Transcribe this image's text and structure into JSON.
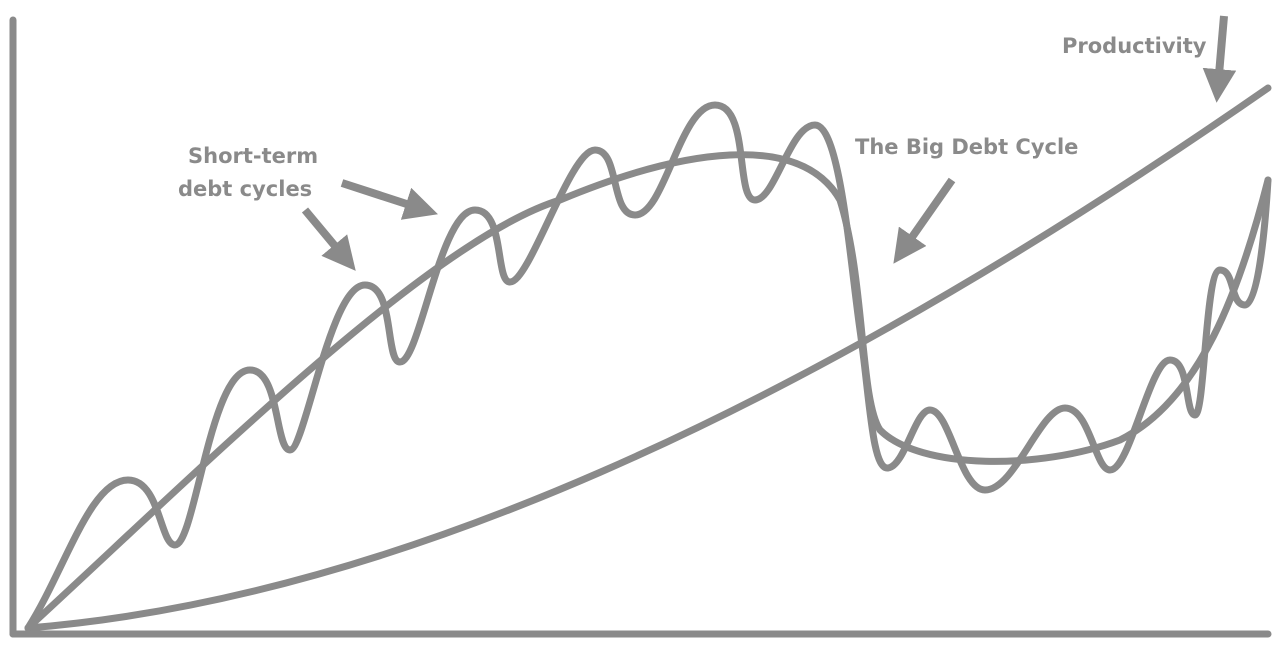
{
  "colors": {
    "stroke": "#8a8a8a",
    "text": "#8a8a8a",
    "background": "#ffffff"
  },
  "labels": {
    "productivity": "Productivity",
    "big_debt_cycle": "The Big Debt Cycle",
    "short_term_line1": "Short-term",
    "short_term_line2": "debt cycles"
  }
}
